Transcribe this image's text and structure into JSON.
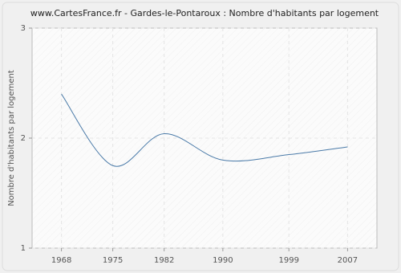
{
  "chart_data": {
    "type": "line",
    "title": "www.CartesFrance.fr - Gardes-le-Pontaroux : Nombre d'habitants par logement",
    "y_label": "Nombre d'habitants par logement",
    "x": [
      1968,
      1975,
      1982,
      1990,
      1999,
      2007
    ],
    "series": [
      {
        "name": "Nombre d'habitants par logement",
        "color": "#4a7aa8",
        "values": [
          2.4,
          1.75,
          2.04,
          1.8,
          1.85,
          1.92
        ]
      }
    ],
    "xlim": [
      1964,
      2011
    ],
    "xticks": [
      1968,
      1975,
      1982,
      1990,
      1999,
      2007
    ],
    "ylim": [
      1,
      3
    ],
    "yticks": [
      1,
      2,
      3
    ],
    "grid": true
  }
}
